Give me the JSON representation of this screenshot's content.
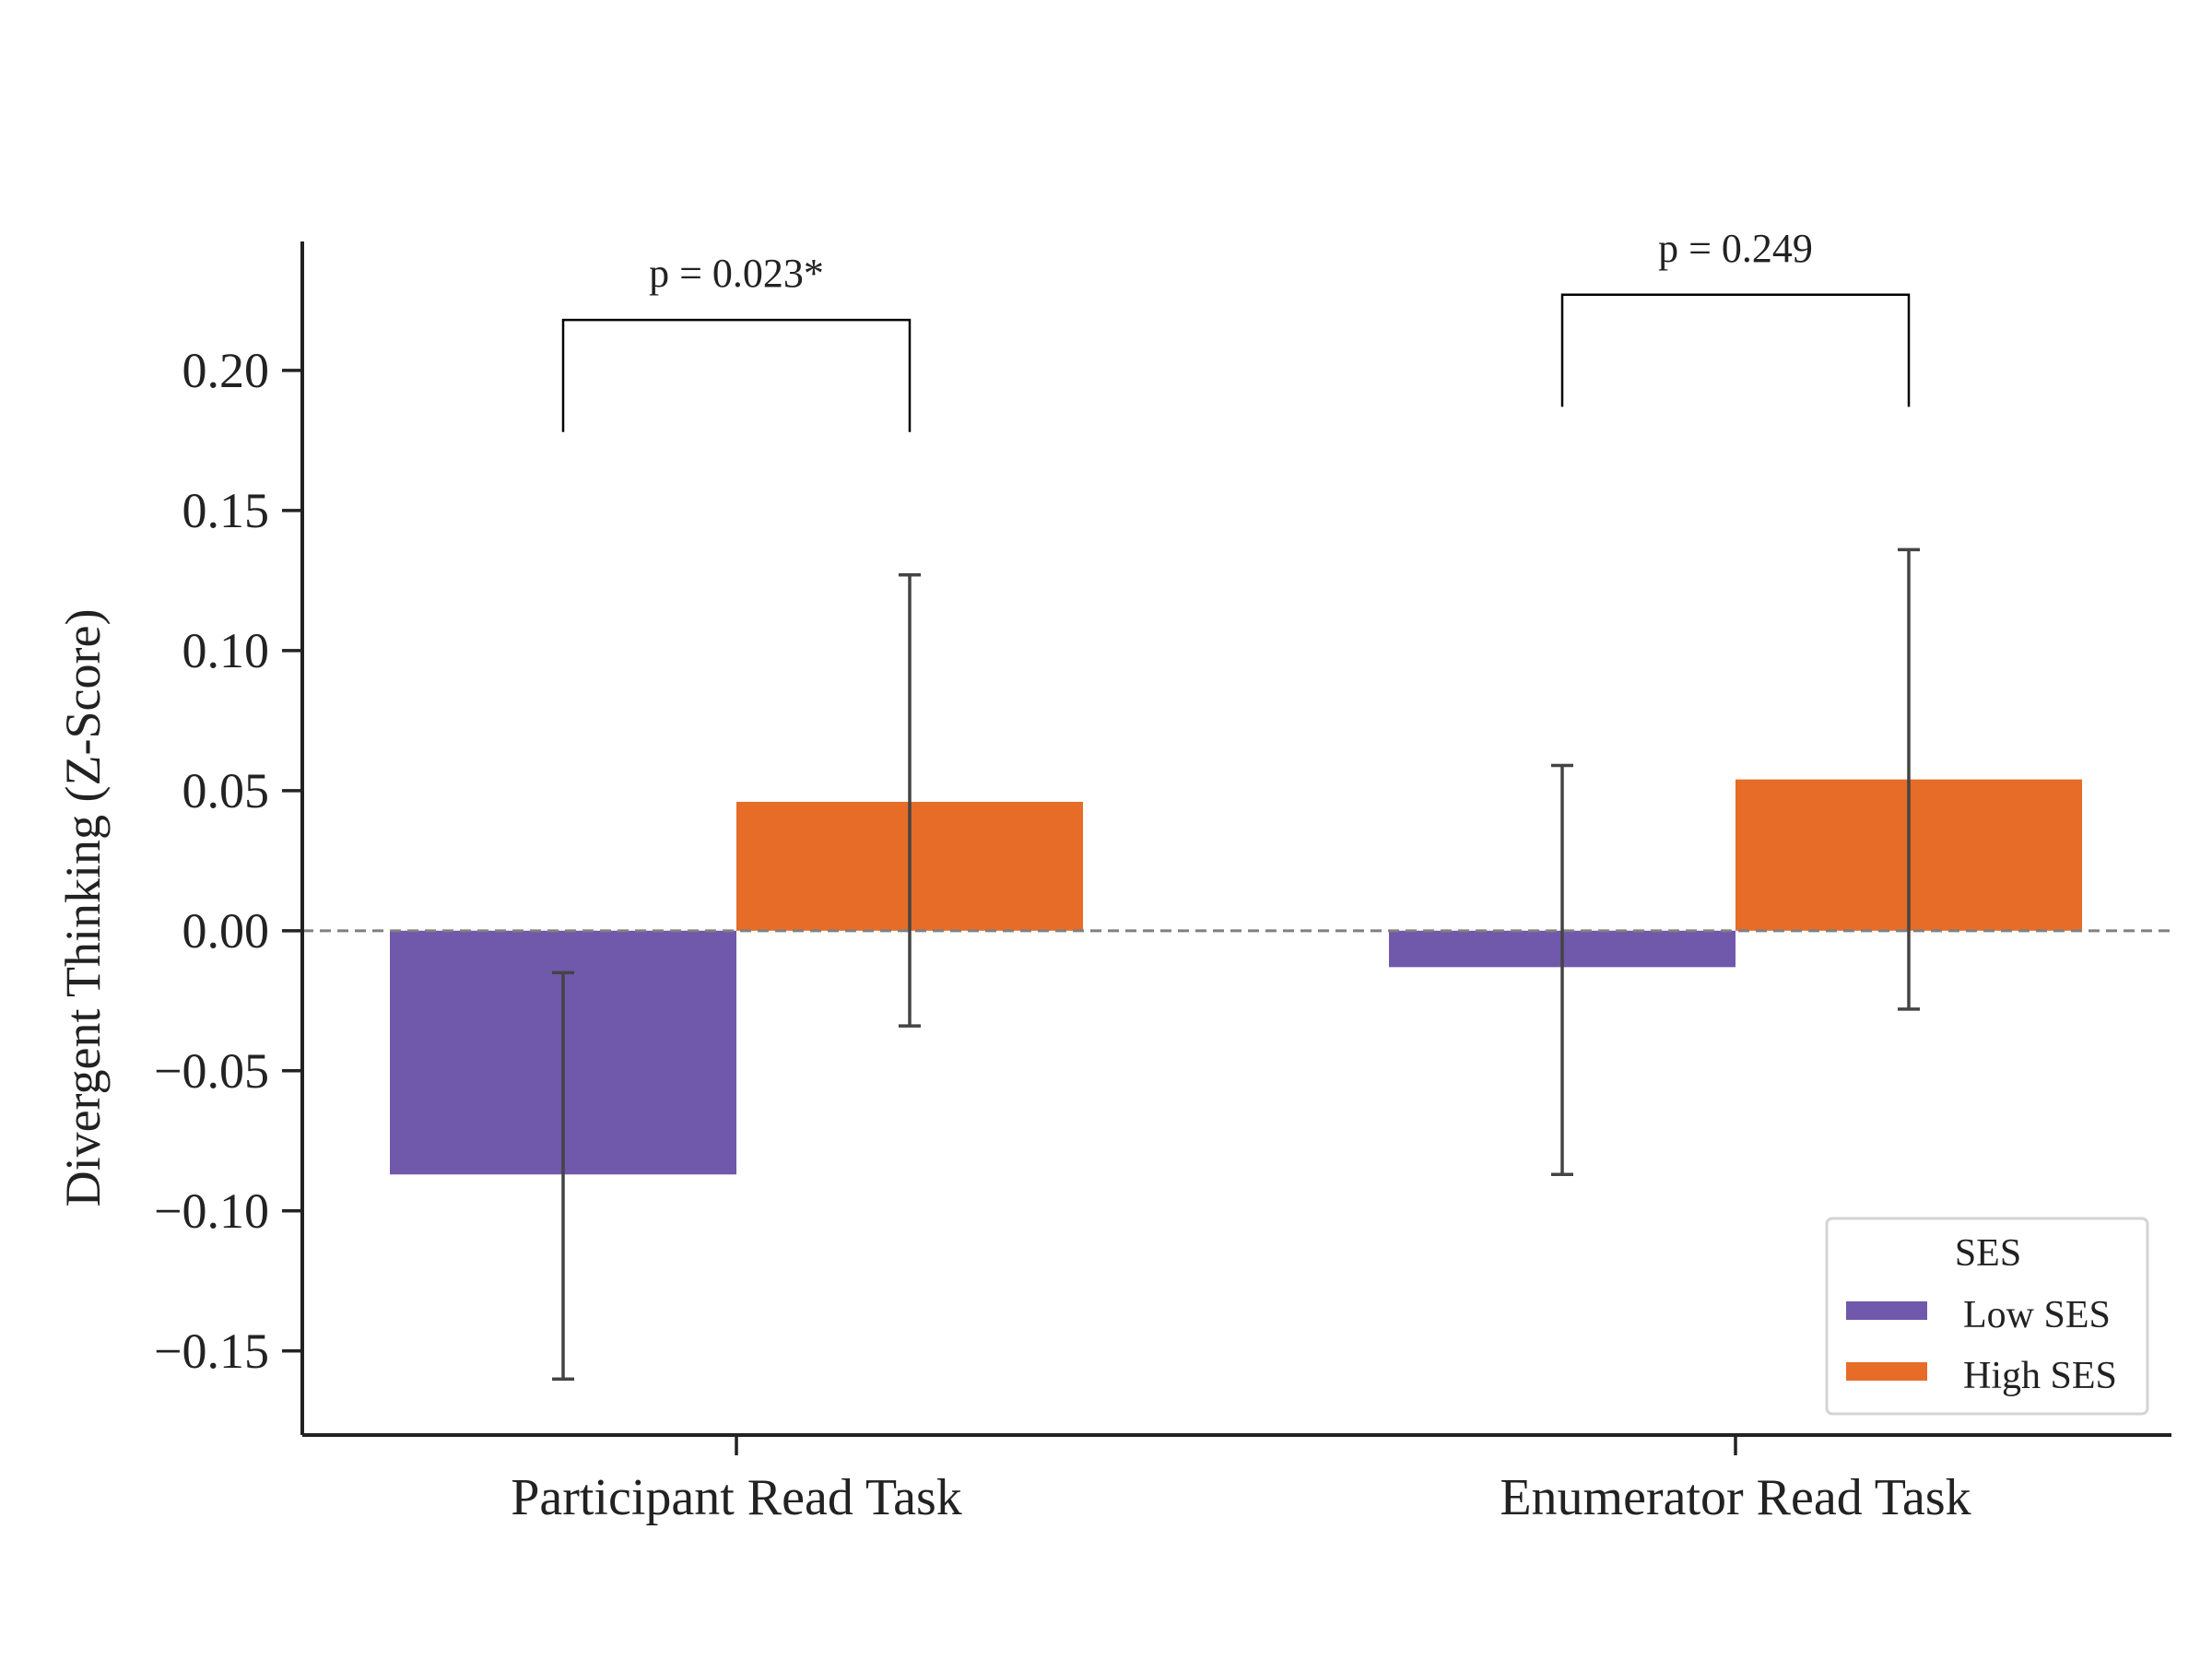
{
  "chart_data": {
    "type": "bar",
    "title": "",
    "xlabel": "",
    "ylabel": "Divergent Thinking (Z-Score)",
    "categories": [
      "Participant Read Task",
      "Enumerator Read Task"
    ],
    "ylim": [
      -0.18,
      0.246
    ],
    "yticks": [
      0.2,
      0.15,
      0.1,
      0.05,
      0.0,
      -0.05,
      -0.1,
      -0.15
    ],
    "ytick_labels": [
      "0.20",
      "0.15",
      "0.10",
      "0.05",
      "0.00",
      "−0.05",
      "−0.10",
      "−0.15"
    ],
    "grid": false,
    "reference_line": {
      "y": 0,
      "style": "dashed",
      "color": "#808080"
    },
    "series": [
      {
        "name": "Low SES",
        "color": "#7058AA",
        "values": [
          -0.087,
          -0.013
        ],
        "error_low": [
          -0.16,
          -0.087
        ],
        "error_high": [
          -0.015,
          0.059
        ]
      },
      {
        "name": "High SES",
        "color": "#E66C27",
        "values": [
          0.046,
          0.054
        ],
        "error_low": [
          -0.034,
          -0.028
        ],
        "error_high": [
          0.127,
          0.136
        ]
      }
    ],
    "annotations": [
      {
        "text": "p = 0.023*",
        "category": "Participant Read Task",
        "bracket_y": 0.218,
        "leg_y": 0.178
      },
      {
        "text": "p = 0.249",
        "category": "Enumerator Read Task",
        "bracket_y": 0.227,
        "leg_y": 0.187
      }
    ],
    "legend": {
      "title": "SES",
      "placement": "lower-right",
      "entries": [
        "Low SES",
        "High SES"
      ]
    }
  }
}
